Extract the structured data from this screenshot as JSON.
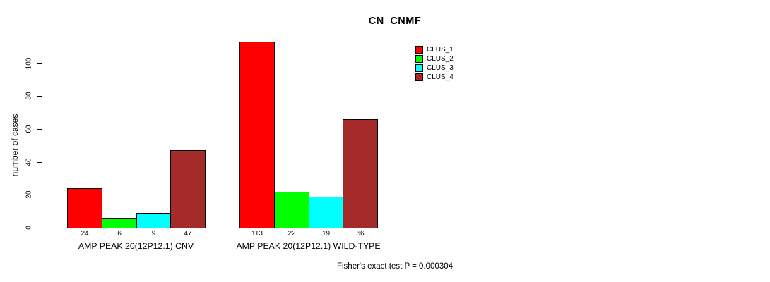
{
  "chart_data": {
    "type": "bar",
    "title": "CN_CNMF",
    "ylabel": "number of cases",
    "xlabel": "",
    "ylim": [
      0,
      113
    ],
    "yticks": [
      0,
      20,
      40,
      60,
      80,
      100
    ],
    "grid": false,
    "legend_position": "top-right",
    "background_color": "#ffffff",
    "text_color": "#000000",
    "categories": [
      "AMP PEAK 20(12P12.1) CNV",
      "AMP PEAK 20(12P12.1) WILD-TYPE"
    ],
    "series": [
      {
        "name": "CLUS_1",
        "color": "#ff0000",
        "values": [
          24,
          113
        ]
      },
      {
        "name": "CLUS_2",
        "color": "#00ff00",
        "values": [
          6,
          22
        ]
      },
      {
        "name": "CLUS_3",
        "color": "#00ffff",
        "values": [
          9,
          19
        ]
      },
      {
        "name": "CLUS_4",
        "color": "#a52a2a",
        "values": [
          47,
          66
        ]
      }
    ],
    "show_bar_value_labels": true,
    "footer": "Fisher's exact test P = 0.000304"
  }
}
